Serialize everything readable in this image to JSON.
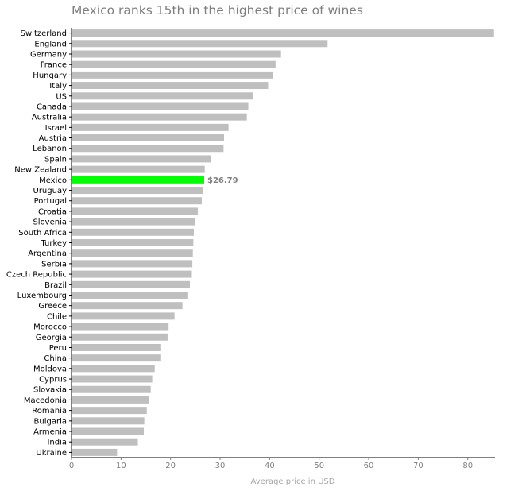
{
  "chart_data": {
    "type": "bar",
    "orientation": "horizontal",
    "title": "Mexico ranks 15th in the highest price of wines",
    "xlabel": "Average price in USD",
    "ylabel": "",
    "xlim": [
      0,
      85.5
    ],
    "xticks": [
      "0",
      "10",
      "20",
      "30",
      "40",
      "50",
      "60",
      "70",
      "80"
    ],
    "grid": false,
    "categories": [
      "Switzerland",
      "England",
      "Germany",
      "France",
      "Hungary",
      "Italy",
      "US",
      "Canada",
      "Australia",
      "Israel",
      "Austria",
      "Lebanon",
      "Spain",
      "New Zealand",
      "Mexico",
      "Uruguay",
      "Portugal",
      "Croatia",
      "Slovenia",
      "South Africa",
      "Turkey",
      "Argentina",
      "Serbia",
      "Czech Republic",
      "Brazil",
      "Luxembourg",
      "Greece",
      "Chile",
      "Morocco",
      "Georgia",
      "Peru",
      "China",
      "Moldova",
      "Cyprus",
      "Slovakia",
      "Macedonia",
      "Romania",
      "Bulgaria",
      "Armenia",
      "India",
      "Ukraine"
    ],
    "values": [
      85.3,
      51.7,
      42.3,
      41.2,
      40.6,
      39.7,
      36.6,
      35.7,
      35.4,
      31.7,
      30.8,
      30.7,
      28.2,
      26.9,
      26.79,
      26.5,
      26.3,
      25.5,
      24.9,
      24.7,
      24.6,
      24.5,
      24.4,
      24.3,
      23.9,
      23.4,
      22.4,
      20.8,
      19.6,
      19.4,
      18.1,
      18.1,
      16.8,
      16.3,
      16.0,
      15.7,
      15.2,
      14.7,
      14.6,
      13.4,
      9.2
    ],
    "highlight": {
      "category": "Mexico",
      "label": "$26.79",
      "color": "#00ff00"
    },
    "bar_color": "#bfbfbf"
  }
}
